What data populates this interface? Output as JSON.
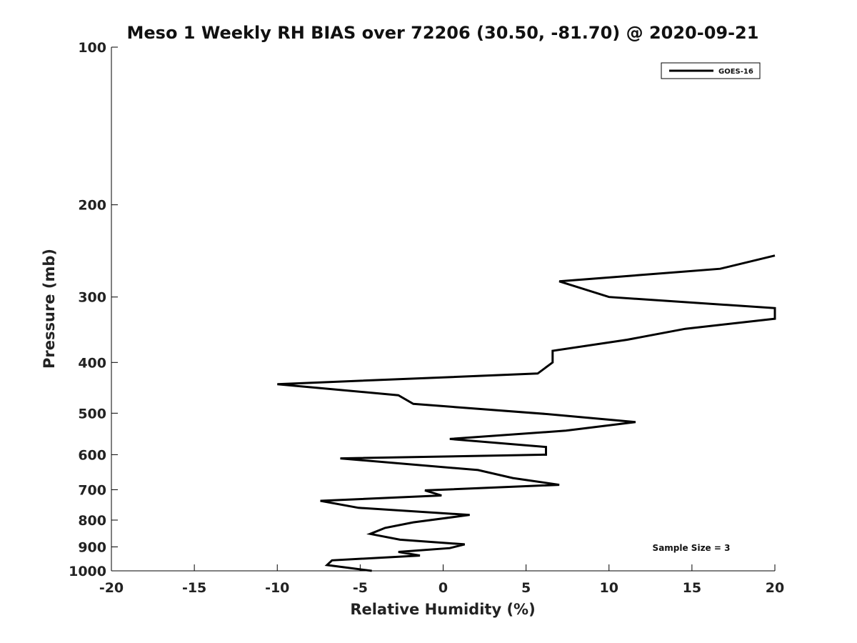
{
  "chart_data": {
    "type": "line",
    "title": "Meso 1 Weekly RH BIAS over 72206 (30.50, -81.70) @ 2020-09-21",
    "xlabel": "Relative Humidity (%)",
    "ylabel": "Pressure (mb)",
    "xlim": [
      -20,
      20
    ],
    "ylim": [
      100,
      1000
    ],
    "y_scale": "log",
    "y_reversed": true,
    "grid": false,
    "legend_position": "top-right",
    "x_ticks": [
      -20,
      -15,
      -10,
      -5,
      0,
      5,
      10,
      15,
      20
    ],
    "x_tick_labels": [
      "-20",
      "-15",
      "-10",
      "-5",
      "0",
      "5",
      "10",
      "15",
      "20"
    ],
    "y_ticks": [
      100,
      200,
      300,
      400,
      500,
      600,
      700,
      800,
      900,
      1000
    ],
    "y_tick_labels": [
      "100",
      "200",
      "300",
      "400",
      "500",
      "600",
      "700",
      "800",
      "900",
      "1000"
    ],
    "series": [
      {
        "name": "GOES-16",
        "color": "#000000",
        "points": [
          [
            20.0,
            250
          ],
          [
            16.7,
            265
          ],
          [
            7.0,
            280
          ],
          [
            10.0,
            300
          ],
          [
            20.0,
            315
          ],
          [
            20.0,
            330
          ],
          [
            14.6,
            345
          ],
          [
            11.1,
            362
          ],
          [
            6.6,
            380
          ],
          [
            6.6,
            400
          ],
          [
            5.7,
            420
          ],
          [
            -10.0,
            440
          ],
          [
            -2.7,
            462
          ],
          [
            -1.8,
            480
          ],
          [
            6.3,
            502
          ],
          [
            11.6,
            520
          ],
          [
            7.4,
            540
          ],
          [
            0.4,
            560
          ],
          [
            6.2,
            580
          ],
          [
            6.2,
            600
          ],
          [
            -6.2,
            610
          ],
          [
            2.1,
            642
          ],
          [
            4.2,
            665
          ],
          [
            7.0,
            685
          ],
          [
            -1.1,
            702
          ],
          [
            -0.1,
            718
          ],
          [
            -7.4,
            735
          ],
          [
            -5.1,
            758
          ],
          [
            1.6,
            782
          ],
          [
            -1.8,
            808
          ],
          [
            -3.5,
            828
          ],
          [
            -4.4,
            850
          ],
          [
            -2.6,
            872
          ],
          [
            1.3,
            890
          ],
          [
            0.4,
            905
          ],
          [
            -2.7,
            920
          ],
          [
            -1.4,
            935
          ],
          [
            -6.7,
            955
          ],
          [
            -7.0,
            975
          ],
          [
            -4.3,
            1000
          ]
        ]
      }
    ],
    "annotation": "Sample Size = 3"
  }
}
